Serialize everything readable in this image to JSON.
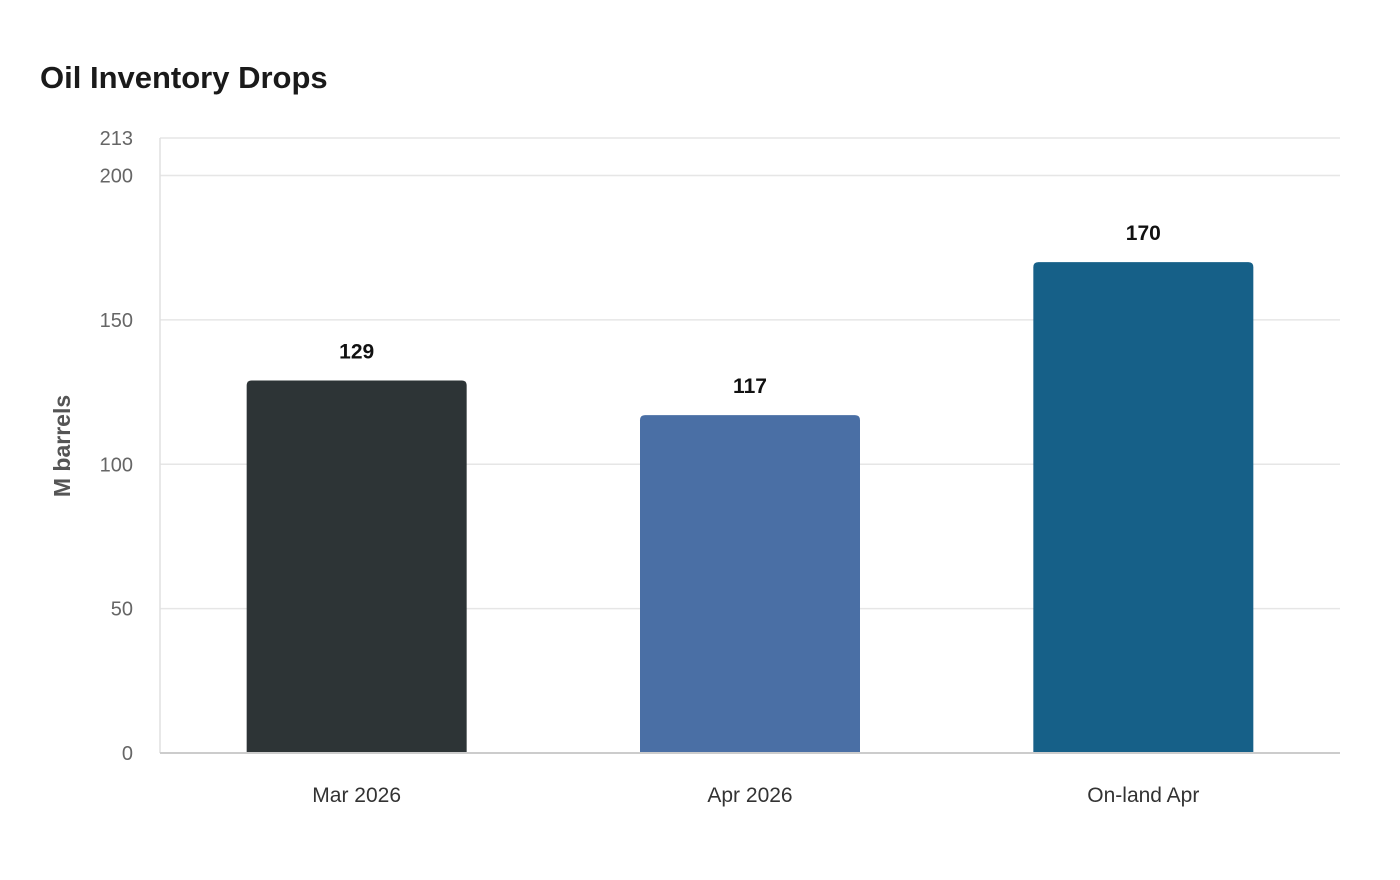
{
  "chart_data": {
    "type": "bar",
    "title": "Oil Inventory Drops",
    "xlabel": "",
    "ylabel": "M barrels",
    "categories": [
      "Mar 2026",
      "Apr 2026",
      "On-land Apr"
    ],
    "values": [
      129,
      117,
      170
    ],
    "value_labels": [
      "129",
      "117",
      "170"
    ],
    "bar_colors": [
      "#2d3436",
      "#4a6fa5",
      "#166088"
    ],
    "ylim": [
      0,
      213
    ],
    "yticks": [
      0,
      50,
      100,
      150,
      200,
      213
    ],
    "ytick_labels": [
      "0",
      "50",
      "100",
      "150",
      "200",
      "213"
    ],
    "grid": true,
    "legend": "none"
  }
}
